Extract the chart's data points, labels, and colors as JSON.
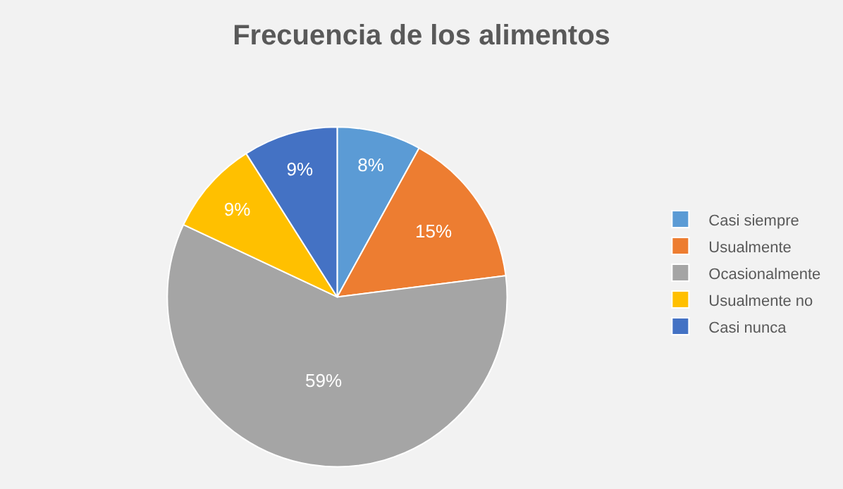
{
  "chart_data": {
    "type": "pie",
    "title": "Frecuencia de los alimentos",
    "categories": [
      "Casi siempre",
      "Usualmente",
      "Ocasionalmente",
      "Usualmente no",
      "Casi nunca"
    ],
    "values": [
      8,
      15,
      59,
      9,
      9
    ],
    "value_labels": [
      "8%",
      "15%",
      "59%",
      "9%",
      "9%"
    ],
    "colors": [
      "#5b9bd5",
      "#ed7d31",
      "#a5a5a5",
      "#ffc000",
      "#4472c4"
    ],
    "legend": "right"
  }
}
